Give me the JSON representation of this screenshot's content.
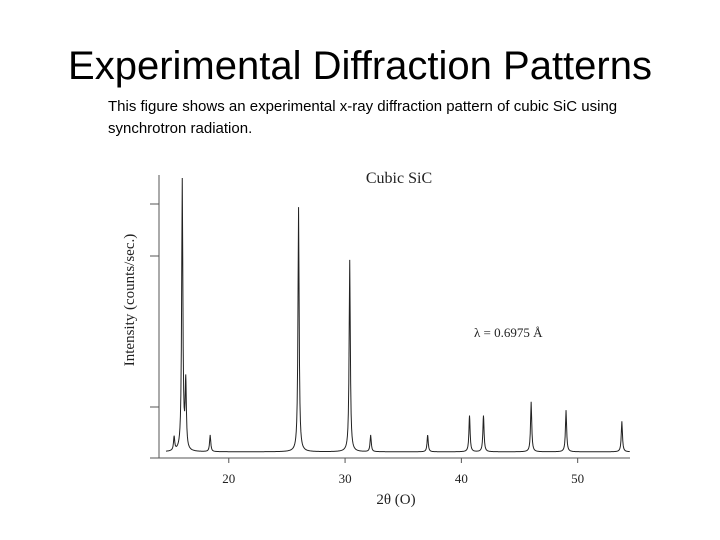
{
  "slide": {
    "title": "Experimental Diffraction Patterns",
    "caption": "This figure shows an experimental x-ray diffraction pattern of cubic SiC using synchrotron radiation."
  },
  "chart_data": {
    "type": "line",
    "title": "Cubic SiC",
    "xlabel": "2θ (O)",
    "ylabel": "Intensity (counts/sec.)",
    "xlim": [
      14,
      54.5
    ],
    "ylim": [
      0,
      100
    ],
    "xticks": [
      20,
      30,
      40,
      50
    ],
    "annotation": "λ = 0.6975 Å",
    "series": [
      {
        "name": "Cubic SiC",
        "baseline": 1.5,
        "peaks": [
          {
            "two_theta": 15.3,
            "intensity": 5
          },
          {
            "two_theta": 16.0,
            "intensity": 100
          },
          {
            "two_theta": 16.3,
            "intensity": 24
          },
          {
            "two_theta": 18.4,
            "intensity": 6
          },
          {
            "two_theta": 26.0,
            "intensity": 88
          },
          {
            "two_theta": 30.4,
            "intensity": 69
          },
          {
            "two_theta": 32.2,
            "intensity": 6
          },
          {
            "two_theta": 37.1,
            "intensity": 6
          },
          {
            "two_theta": 40.7,
            "intensity": 13
          },
          {
            "two_theta": 41.9,
            "intensity": 13
          },
          {
            "two_theta": 46.0,
            "intensity": 18
          },
          {
            "two_theta": 49.0,
            "intensity": 15
          },
          {
            "two_theta": 53.8,
            "intensity": 11
          }
        ]
      }
    ]
  }
}
